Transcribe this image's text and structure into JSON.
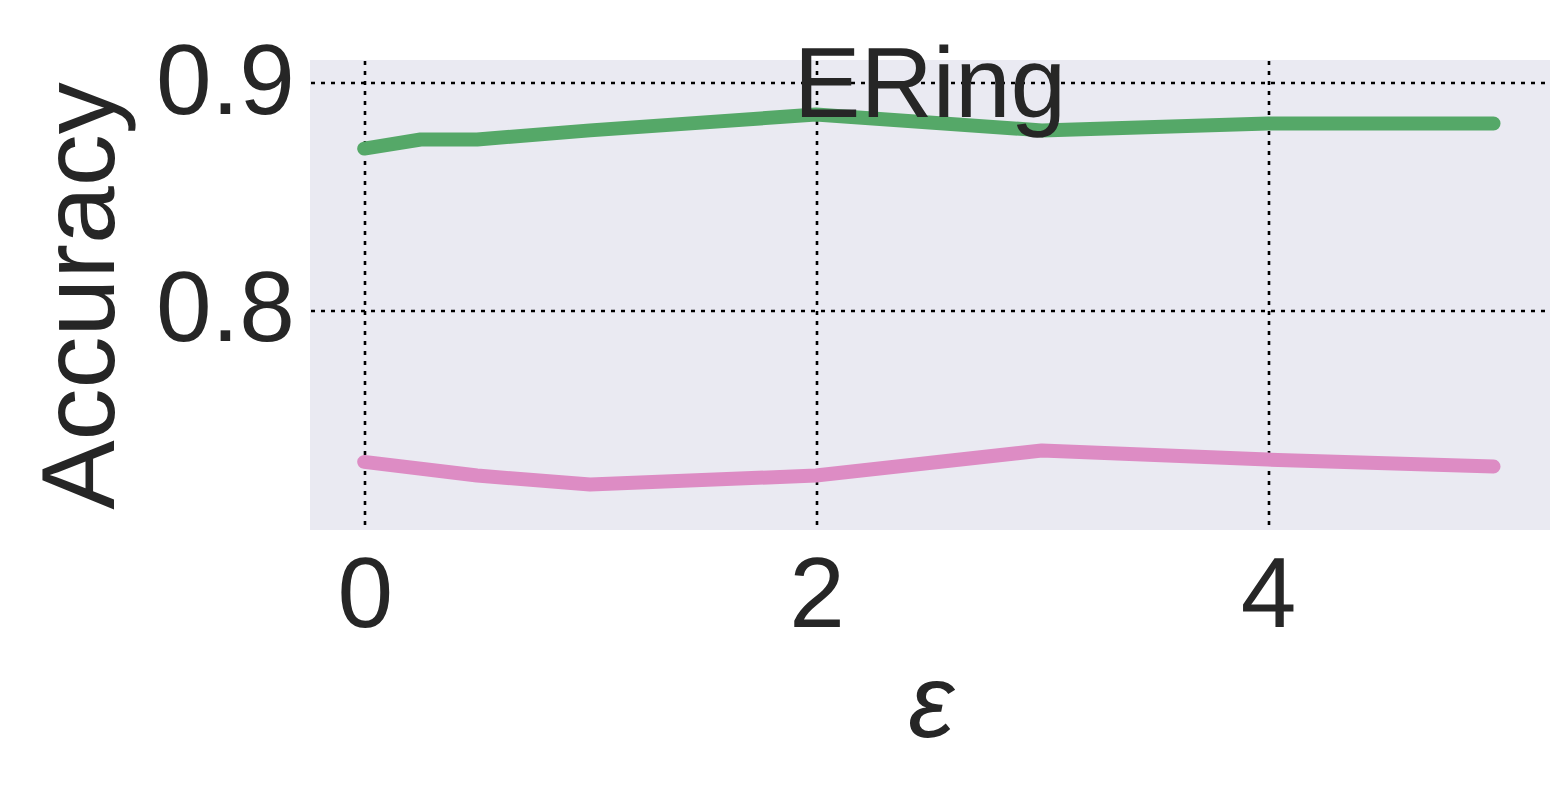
{
  "chart_data": {
    "type": "line",
    "title": "ERing",
    "xlabel": "ε",
    "ylabel": "Accuracy",
    "xlim": [
      -0.24,
      5.25
    ],
    "xticks": [
      0,
      2,
      4
    ],
    "ylim": [
      0.703,
      0.91
    ],
    "yticks": [
      0.8,
      0.9
    ],
    "grid": true,
    "line_style": "solid",
    "series": [
      {
        "color": "#55a868",
        "x": [
          0,
          0.25,
          0.5,
          1,
          2,
          3,
          4,
          5
        ],
        "values": [
          0.871,
          0.875,
          0.875,
          0.879,
          0.886,
          0.879,
          0.882,
          0.882
        ]
      },
      {
        "color": "#dd8cc4",
        "x": [
          0,
          0.5,
          1,
          2,
          3,
          4,
          5
        ],
        "values": [
          0.733,
          0.727,
          0.723,
          0.727,
          0.738,
          0.734,
          0.731
        ]
      }
    ]
  }
}
